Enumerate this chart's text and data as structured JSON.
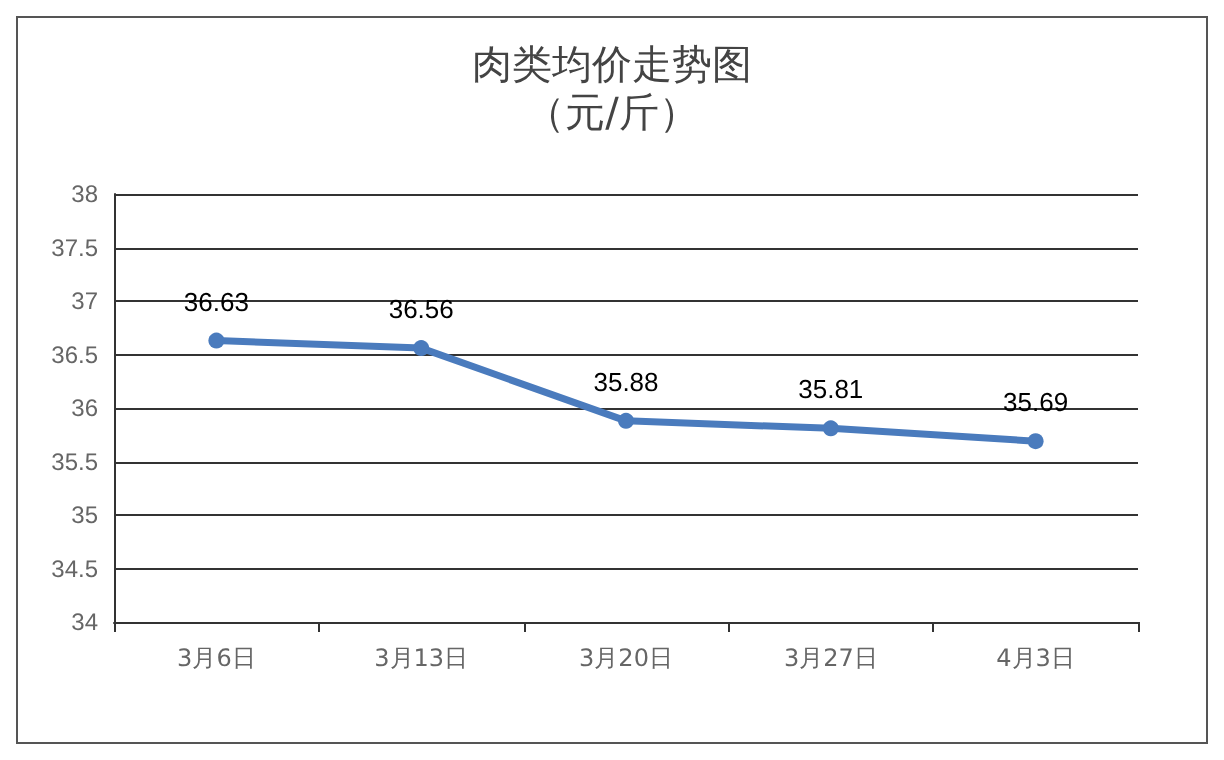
{
  "chart_data": {
    "type": "line",
    "title": "肉类均价走势图",
    "subtitle": "（元/斤）",
    "categories": [
      "3月6日",
      "3月13日",
      "3月20日",
      "3月27日",
      "4月3日"
    ],
    "series": [
      {
        "color": "#4a7bbd",
        "values": [
          36.63,
          36.56,
          35.88,
          35.81,
          35.69
        ]
      }
    ],
    "ylim": [
      34,
      38
    ],
    "yticks": [
      34,
      34.5,
      35,
      35.5,
      36,
      36.5,
      37,
      37.5,
      38
    ],
    "grid": "y",
    "marker": "circle",
    "line_style": "solid",
    "data_labels": true
  }
}
